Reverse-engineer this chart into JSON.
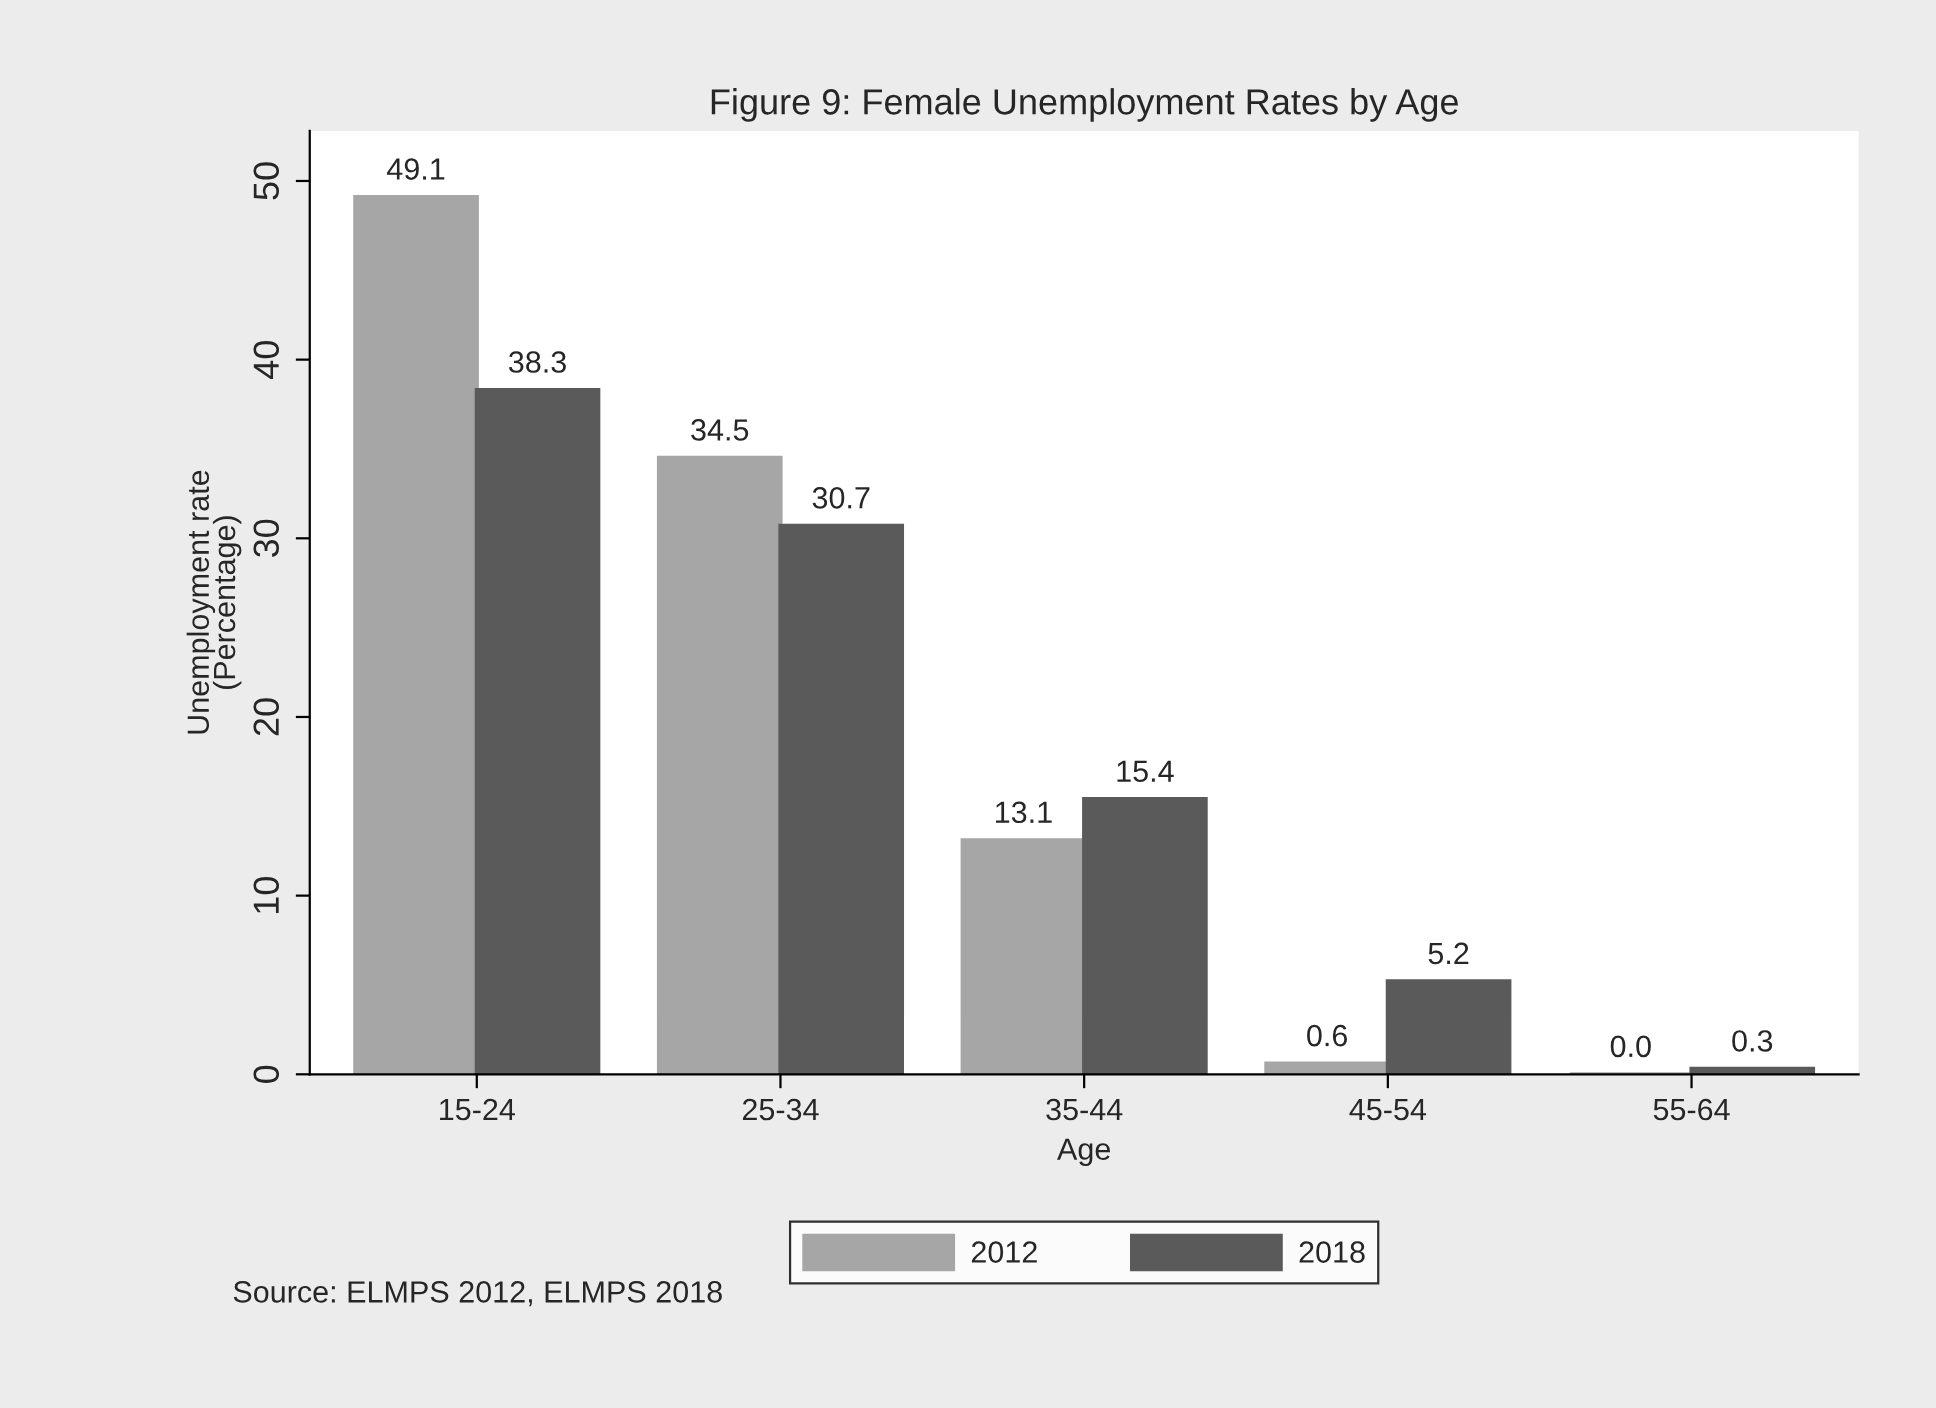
{
  "chart_data": {
    "type": "bar",
    "title": "Figure 9: Female Unemployment Rates by Age",
    "xlabel": "Age",
    "ylabel": "Unemployment rate\n(Percentage)",
    "categories": [
      "15-24",
      "25-34",
      "35-44",
      "45-54",
      "55-64"
    ],
    "series": [
      {
        "name": "2012",
        "color": "#a6a6a6",
        "values": [
          49.1,
          34.5,
          13.1,
          0.6,
          0.0
        ],
        "value_labels": [
          "49.1",
          "34.5",
          "13.1",
          "0.6",
          "0.0"
        ]
      },
      {
        "name": "2018",
        "color": "#5a5a5a",
        "values": [
          38.3,
          30.7,
          15.4,
          5.2,
          0.3
        ],
        "value_labels": [
          "38.3",
          "30.7",
          "15.4",
          "5.2",
          "0.3"
        ]
      }
    ],
    "ylim": [
      0,
      52.8
    ],
    "yticks": [
      0,
      10,
      20,
      30,
      40,
      50
    ],
    "grid": false,
    "legend": "bottom",
    "annotations": [
      "Source: ELMPS 2012, ELMPS 2018"
    ]
  }
}
